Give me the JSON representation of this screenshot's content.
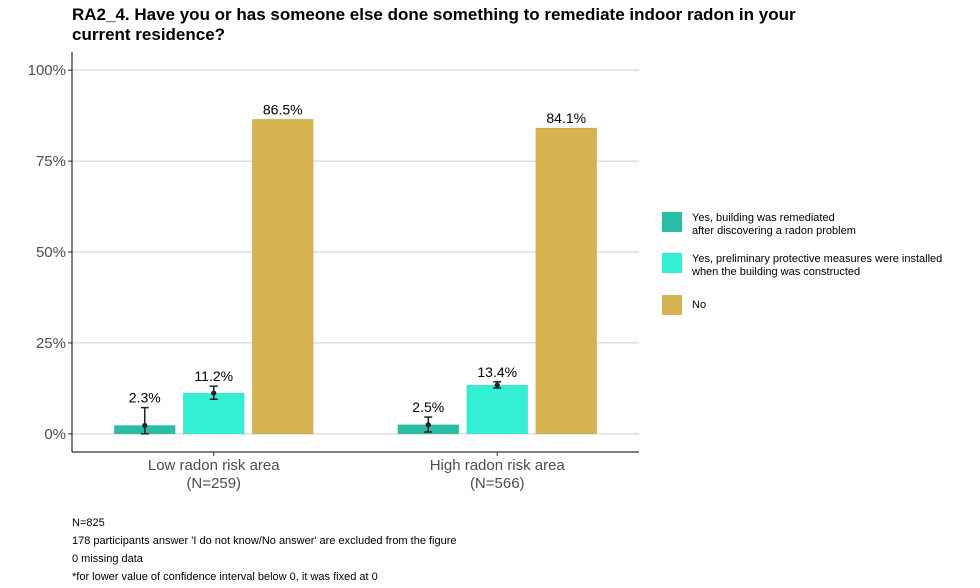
{
  "title": "RA2_4. Have you or has someone else done something to remediate indoor radon in your current residence?",
  "chart_data": {
    "type": "bar",
    "categories": [
      "Low radon risk area\n(N=259)",
      "High radon risk area\n(N=566)"
    ],
    "series": [
      {
        "name": "Yes, building was remediated\nafter discovering a radon problem",
        "color": "#26bfa5",
        "values": [
          2.3,
          2.5
        ],
        "labels": [
          "2.3%",
          "2.5%"
        ],
        "ci_low": [
          0,
          0.5
        ],
        "ci_high": [
          7.2,
          4.6
        ]
      },
      {
        "name": "Yes, preliminary protective measures were installed\nwhen the building was constructed",
        "color": "#33f0d4",
        "values": [
          11.2,
          13.4
        ],
        "labels": [
          "11.2%",
          "13.4%"
        ],
        "ci_low": [
          9.5,
          12.6
        ],
        "ci_high": [
          13.1,
          14.3
        ]
      },
      {
        "name": "No",
        "color": "#d6b350",
        "values": [
          86.5,
          84.1
        ],
        "labels": [
          "86.5%",
          "84.1%"
        ],
        "ci_low": null,
        "ci_high": null
      }
    ],
    "yticks": [
      "0%",
      "25%",
      "50%",
      "75%",
      "100%"
    ],
    "ytick_values": [
      0,
      25,
      50,
      75,
      100
    ],
    "ylim": [
      -5,
      105
    ],
    "xlabel": "",
    "ylabel": "",
    "legend_position": "right"
  },
  "footnotes": [
    "N=825",
    "178 participants answer 'I do not know/No answer' are excluded from the figure",
    "0 missing data",
    "*for lower value of confidence interval below 0, it was fixed at 0"
  ]
}
